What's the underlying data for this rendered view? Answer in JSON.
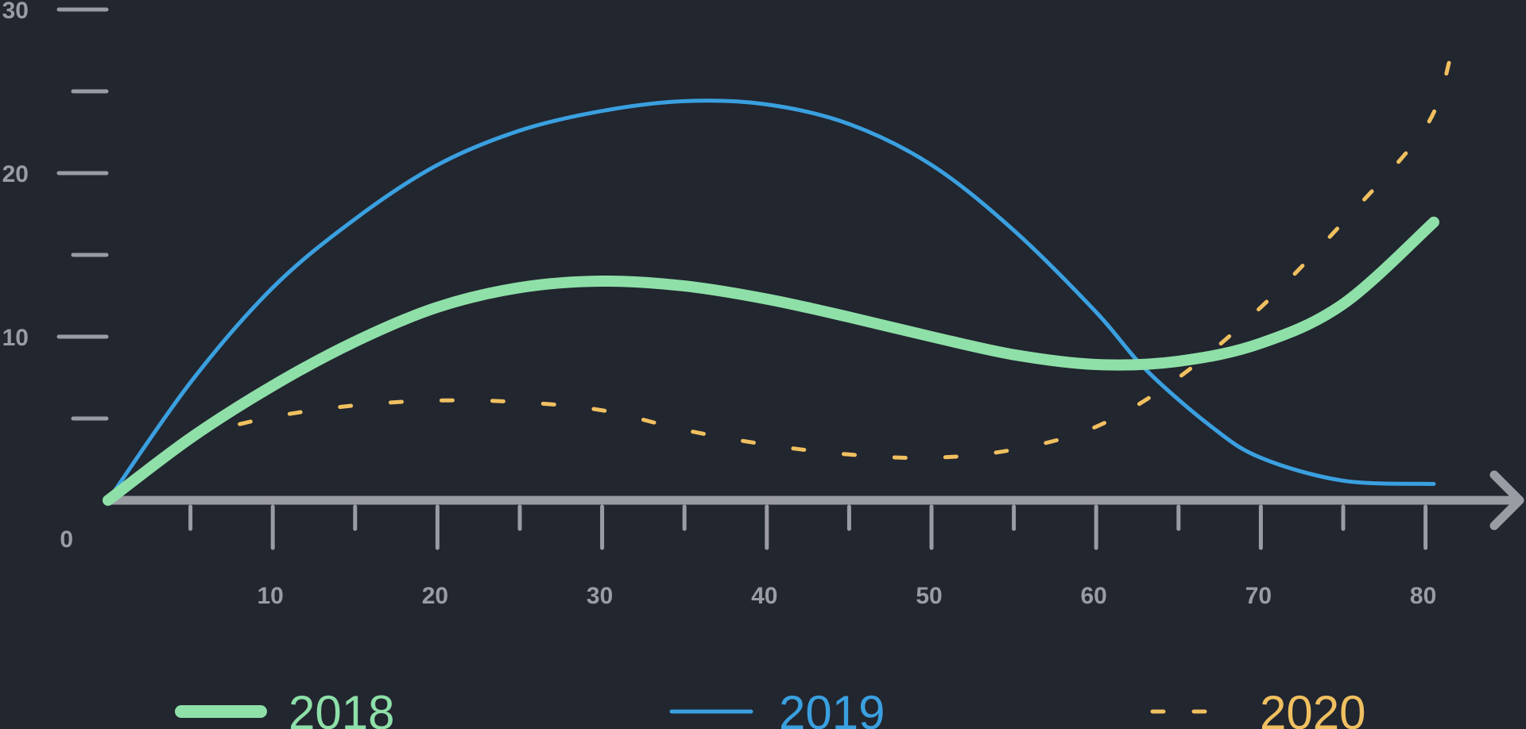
{
  "chart_data": {
    "type": "line",
    "title": "",
    "xlabel": "",
    "ylabel": "",
    "xlim": [
      0,
      85
    ],
    "ylim": [
      0,
      30
    ],
    "x_ticks": [
      10,
      20,
      30,
      40,
      50,
      60,
      70,
      80
    ],
    "x_tick_labels": [
      "10",
      "20",
      "30",
      "40",
      "50",
      "60",
      "70",
      "80"
    ],
    "y_ticks": [
      0,
      10,
      20,
      30
    ],
    "y_tick_labels": [
      "0",
      "10",
      "20",
      "30"
    ],
    "grid": false,
    "legend_position": "bottom",
    "series": [
      {
        "name": "2018",
        "color": "#8ee0a8",
        "style": "solid-thick",
        "x": [
          0,
          5,
          10,
          15,
          20,
          25,
          30,
          35,
          40,
          45,
          50,
          55,
          60,
          65,
          70,
          75,
          80.5
        ],
        "y": [
          0,
          3.8,
          7.0,
          9.7,
          11.8,
          13.0,
          13.4,
          13.1,
          12.3,
          11.2,
          10.0,
          8.9,
          8.3,
          8.5,
          9.6,
          12.0,
          17.0
        ]
      },
      {
        "name": "2019",
        "color": "#3aa0e0",
        "style": "solid-thin",
        "x": [
          0,
          5,
          10,
          15,
          20,
          25,
          30,
          35,
          40,
          45,
          50,
          55,
          60,
          63,
          67,
          70,
          75,
          80.5
        ],
        "y": [
          0,
          7.2,
          13.0,
          17.2,
          20.5,
          22.6,
          23.8,
          24.4,
          24.2,
          23.0,
          20.5,
          16.5,
          11.5,
          8.0,
          4.5,
          2.6,
          1.2,
          1.0
        ]
      },
      {
        "name": "2020",
        "color": "#f0c060",
        "style": "dashed",
        "x": [
          5,
          10,
          15,
          20,
          25,
          30,
          35,
          40,
          45,
          50,
          55,
          60,
          65,
          70,
          75,
          80,
          81.5
        ],
        "y": [
          3.9,
          5.1,
          5.8,
          6.1,
          6.0,
          5.5,
          4.3,
          3.4,
          2.8,
          2.6,
          3.1,
          4.5,
          7.5,
          11.8,
          17.0,
          22.8,
          27.0
        ]
      }
    ]
  }
}
